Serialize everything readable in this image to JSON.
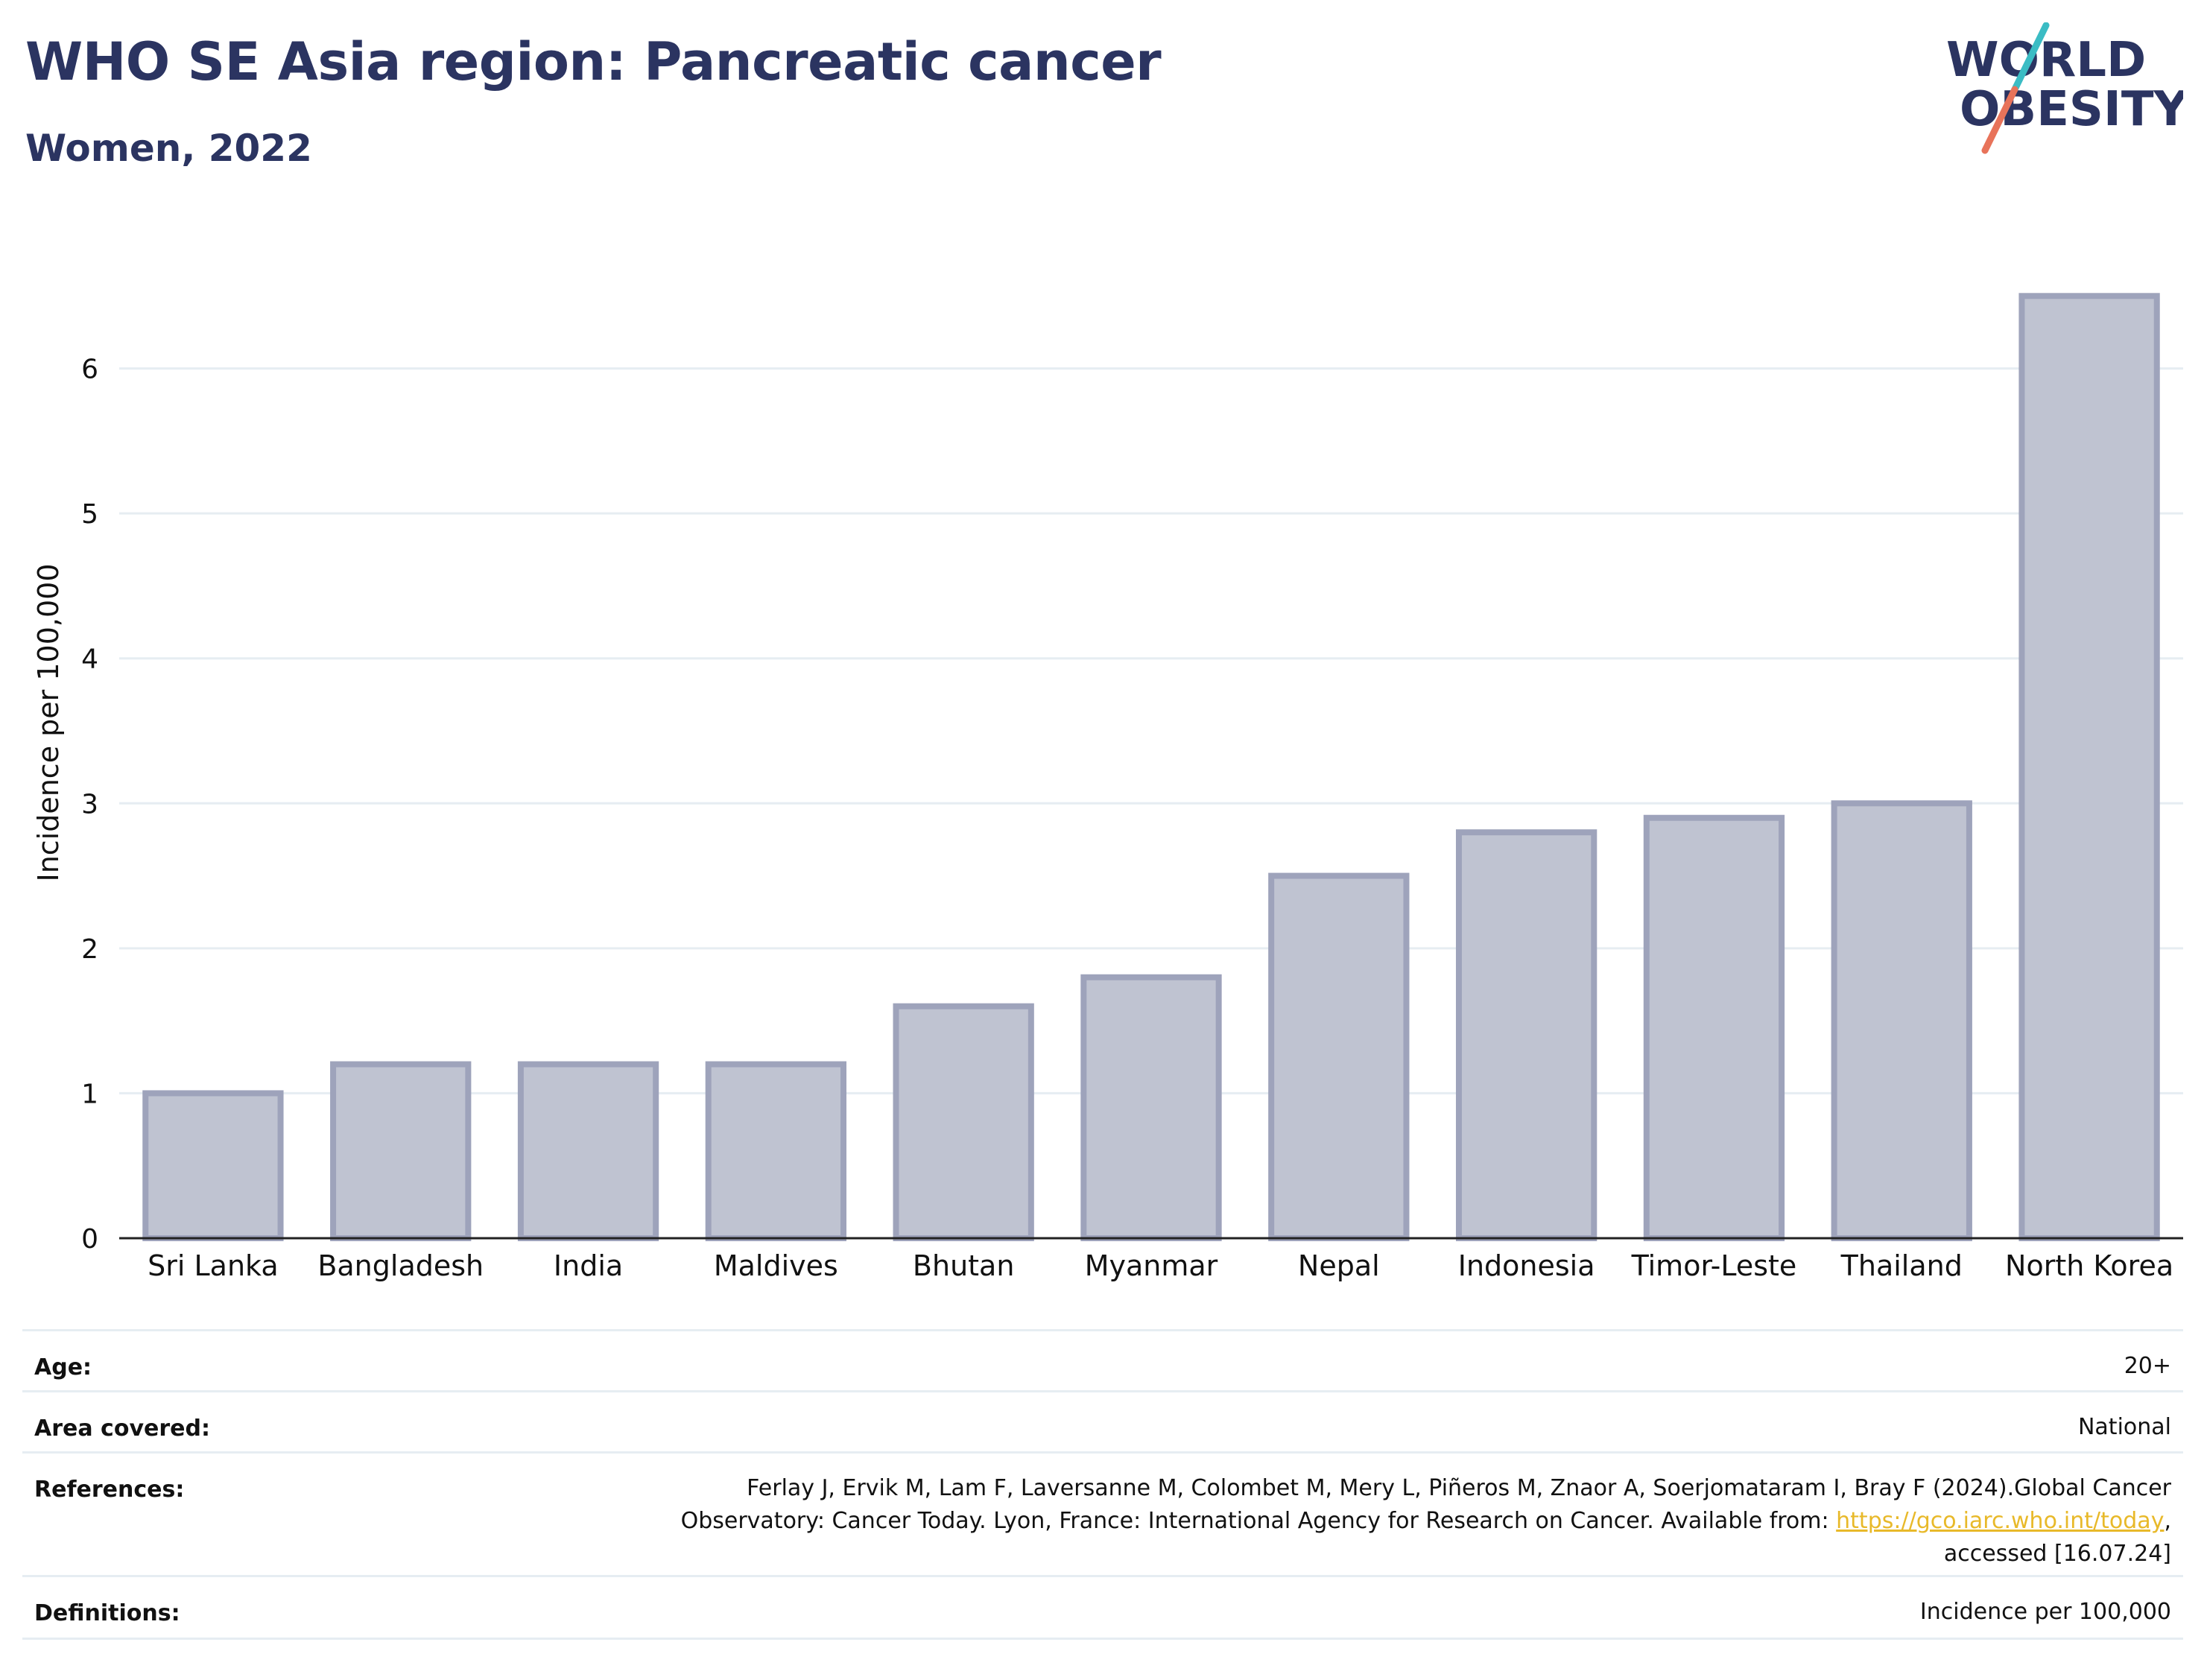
{
  "header": {
    "title": "WHO SE Asia region: Pancreatic cancer",
    "subtitle": "Women, 2022"
  },
  "logo": {
    "line1": "WORLD",
    "line2": "OBESITY",
    "colors": {
      "text": "#2b3461",
      "slash_top": "#3bbcc4",
      "slash_bottom": "#e8735a"
    }
  },
  "chart_data": {
    "type": "bar",
    "categories": [
      "Sri Lanka",
      "Bangladesh",
      "India",
      "Maldives",
      "Bhutan",
      "Myanmar",
      "Nepal",
      "Indonesia",
      "Timor-Leste",
      "Thailand",
      "North Korea"
    ],
    "values": [
      1.0,
      1.2,
      1.2,
      1.2,
      1.6,
      1.8,
      2.5,
      2.8,
      2.9,
      3.0,
      6.5
    ],
    "ylabel": "Incidence per 100,000",
    "xlabel": "",
    "ylim": [
      0,
      7
    ],
    "yticks": [
      0,
      1,
      2,
      3,
      4,
      5,
      6
    ],
    "grid": true,
    "colors": {
      "bar_fill": "#bfc3d1",
      "bar_stroke": "#9ea3bb",
      "grid": "#e6edf2",
      "axis": "#222222"
    }
  },
  "meta": {
    "age": {
      "label": "Age:",
      "value": "20+"
    },
    "area": {
      "label": "Area covered:",
      "value": "National"
    },
    "references": {
      "label": "References:",
      "line1": "Ferlay J, Ervik M, Lam F, Laversanne M, Colombet M, Mery L, Piñeros M, Znaor A, Soerjomataram I, Bray F (2024).Global Cancer",
      "line2_pre": "Observatory: Cancer Today. Lyon, France: International Agency for Research on Cancer. Available from: ",
      "link": "https://gco.iarc.who.int/today",
      "line2_post": ",",
      "line3": "accessed [16.07.24]"
    },
    "definitions": {
      "label": "Definitions:",
      "value": "Incidence per 100,000"
    }
  }
}
